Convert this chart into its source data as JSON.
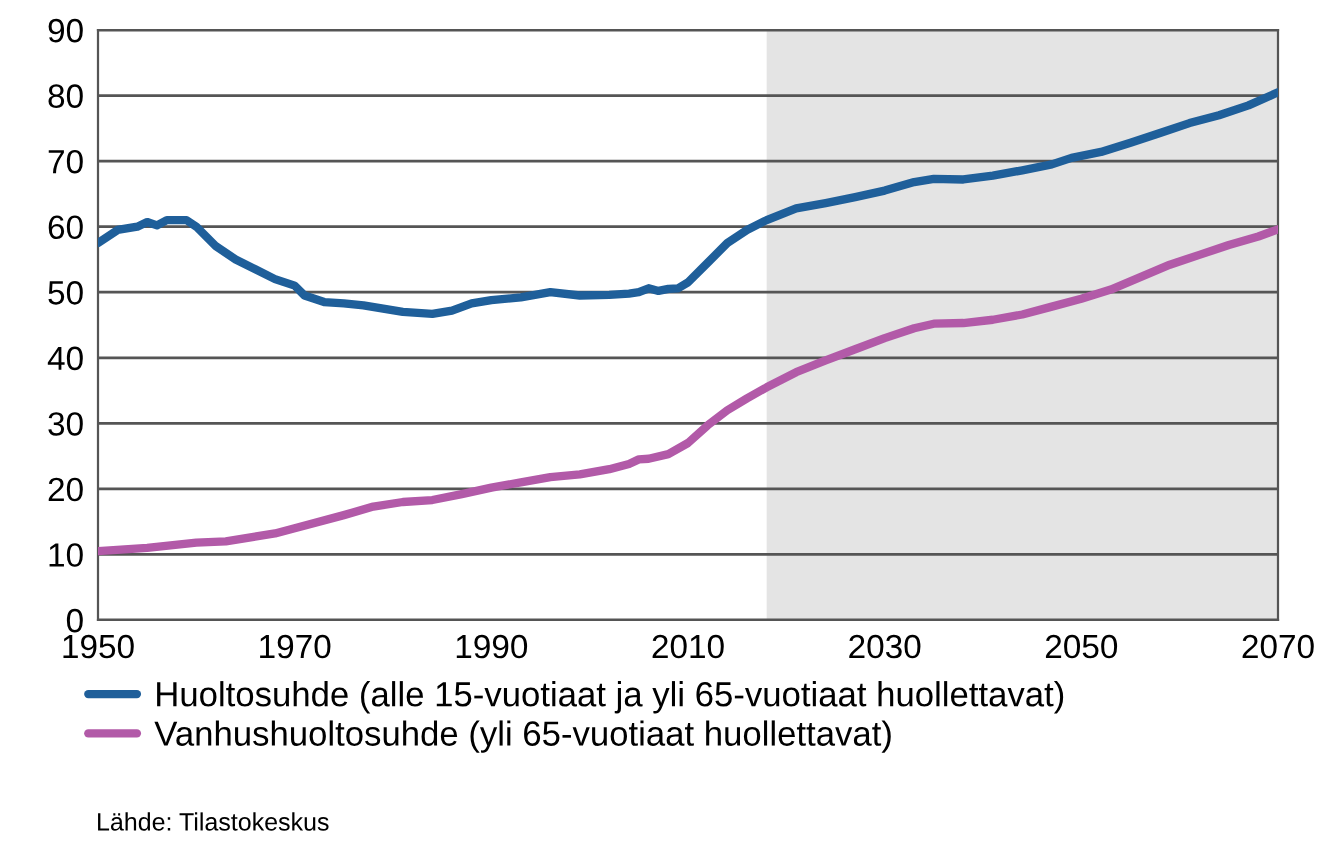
{
  "chart_data": {
    "type": "line",
    "x": [
      1950,
      1952,
      1954,
      1955,
      1956,
      1957,
      1959,
      1960,
      1962,
      1964,
      1966,
      1968,
      1970,
      1971,
      1973,
      1975,
      1977,
      1979,
      1981,
      1984,
      1986,
      1988,
      1990,
      1993,
      1996,
      1999,
      2002,
      2004,
      2005,
      2006,
      2007,
      2008,
      2009,
      2010,
      2012,
      2014,
      2016,
      2018,
      2021,
      2024,
      2027,
      2030,
      2033,
      2035,
      2038,
      2041,
      2044,
      2047,
      2049,
      2052,
      2055,
      2058,
      2061,
      2064,
      2067,
      2070
    ],
    "series": [
      {
        "name": "Huoltosuhde (alle 15-vuotiaat ja yli 65-vuotiaat huollettavat)",
        "color": "#1f5f9a",
        "values": [
          57.5,
          59.5,
          60,
          60.7,
          60.2,
          61,
          61,
          60,
          57,
          55,
          53.5,
          52,
          51,
          49.5,
          48.5,
          48.3,
          48,
          47.5,
          47,
          46.7,
          47.2,
          48.3,
          48.8,
          49.2,
          50,
          49.5,
          49.6,
          49.8,
          50,
          50.6,
          50.2,
          50.5,
          50.6,
          51.5,
          54.5,
          57.5,
          59.5,
          61,
          62.8,
          63.6,
          64.5,
          65.5,
          66.8,
          67.3,
          67.2,
          67.8,
          68.6,
          69.5,
          70.5,
          71.4,
          72.8,
          74.3,
          75.8,
          77,
          78.5,
          80.5
        ]
      },
      {
        "name": "Vanhushuoltosuhde (yli 65-vuotiaat huollettavat)",
        "color": "#b25aa8",
        "x": [
          1950,
          1955,
          1960,
          1963,
          1968,
          1970,
          1975,
          1978,
          1981,
          1984,
          1987,
          1990,
          1993,
          1996,
          1999,
          2002,
          2004,
          2005,
          2006,
          2008,
          2010,
          2012,
          2014,
          2016,
          2018,
          2021,
          2024,
          2027,
          2030,
          2033,
          2035,
          2038,
          2041,
          2044,
          2047,
          2050,
          2053,
          2056,
          2059,
          2062,
          2065,
          2068,
          2070
        ],
        "values": [
          10.5,
          11,
          11.8,
          12,
          13.2,
          14,
          16,
          17.3,
          18,
          18.3,
          19.2,
          20.2,
          21,
          21.8,
          22.2,
          23,
          23.8,
          24.5,
          24.6,
          25.3,
          27,
          29.7,
          32,
          33.8,
          35.5,
          37.8,
          39.6,
          41.3,
          43,
          44.5,
          45.2,
          45.3,
          45.8,
          46.6,
          47.8,
          49,
          50.4,
          52.3,
          54.2,
          55.7,
          57.2,
          58.5,
          59.6
        ]
      }
    ],
    "xlim": [
      1950,
      2070
    ],
    "xticks": [
      1950,
      1970,
      1990,
      2010,
      2030,
      2050,
      2070
    ],
    "ylim": [
      0,
      90
    ],
    "yticks": [
      0,
      10,
      20,
      30,
      40,
      50,
      60,
      70,
      80,
      90
    ],
    "grid": "y",
    "legend": "bottom",
    "line_style": "solid",
    "marker": "none",
    "bands": [
      {
        "axis": "x",
        "from": 2018,
        "to": 2070,
        "color": "#e4e4e4"
      }
    ],
    "annotations": [
      "Lähde: Tilastokeskus"
    ]
  }
}
